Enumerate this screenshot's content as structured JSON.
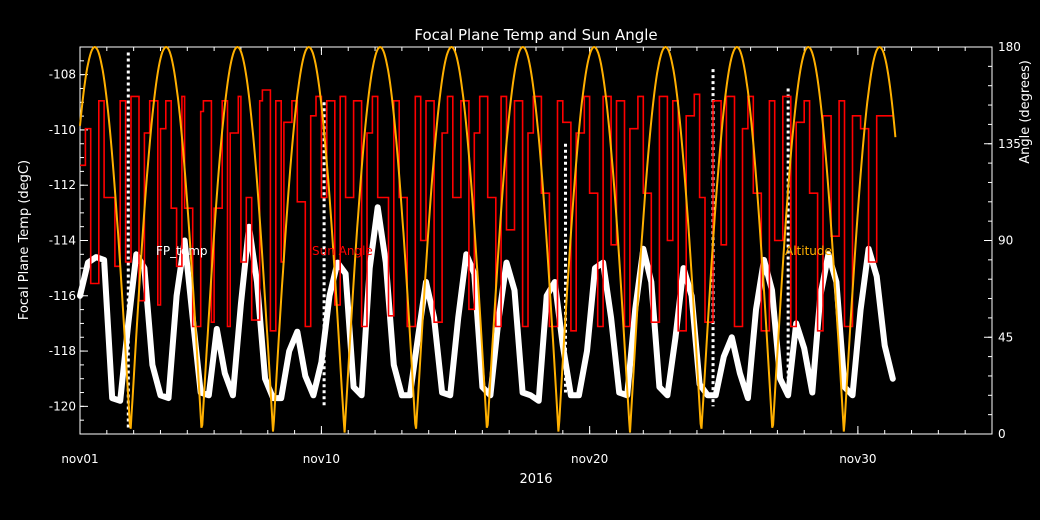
{
  "chart_data": {
    "type": "line",
    "title": "Focal Plane Temp and Sun Angle",
    "xlabel": "2016",
    "ylabel_left": "Focal Plane Temp (degC)",
    "ylabel_right": "Angle (degrees)",
    "xlim_days": [
      1,
      35
    ],
    "ylim_left": [
      -121.0,
      -107.0
    ],
    "ylim_right": [
      0,
      180
    ],
    "x_ticks": [
      {
        "label": "nov01",
        "day": 1
      },
      {
        "label": "nov10",
        "day": 10
      },
      {
        "label": "nov20",
        "day": 20
      },
      {
        "label": "nov30",
        "day": 30
      }
    ],
    "y_ticks_left": [
      {
        "label": "-108",
        "value": -108
      },
      {
        "label": "-110",
        "value": -110
      },
      {
        "label": "-112",
        "value": -112
      },
      {
        "label": "-114",
        "value": -114
      },
      {
        "label": "-116",
        "value": -116
      },
      {
        "label": "-118",
        "value": -118
      },
      {
        "label": "-120",
        "value": -120
      }
    ],
    "y_ticks_right": [
      {
        "label": "180",
        "value": 180
      },
      {
        "label": "135",
        "value": 135
      },
      {
        "label": "90",
        "value": 90
      },
      {
        "label": "45",
        "value": 45
      },
      {
        "label": "0",
        "value": 0
      }
    ],
    "legend": [
      {
        "label": "FP_temp",
        "color": "#ffffff"
      },
      {
        "label": "Sun Angle",
        "color": "#ff0000"
      },
      {
        "label": "Altitude",
        "color": "#ffb000"
      }
    ],
    "series": [
      {
        "name": "FP_temp",
        "axis": "left",
        "color": "#ffffff",
        "style": "markers",
        "x": [
          1.0,
          1.3,
          1.6,
          1.9,
          2.2,
          2.5,
          2.8,
          3.1,
          3.4,
          3.7,
          4.0,
          4.3,
          4.6,
          4.9,
          5.2,
          5.5,
          5.8,
          6.1,
          6.4,
          6.7,
          7.0,
          7.3,
          7.6,
          7.9,
          8.2,
          8.5,
          8.8,
          9.1,
          9.4,
          9.7,
          10.0,
          10.3,
          10.6,
          10.9,
          11.2,
          11.5,
          11.8,
          12.1,
          12.4,
          12.7,
          13.0,
          13.3,
          13.6,
          13.9,
          14.2,
          14.5,
          14.8,
          15.1,
          15.4,
          15.7,
          16.0,
          16.3,
          16.6,
          16.9,
          17.2,
          17.5,
          17.8,
          18.1,
          18.4,
          18.7,
          19.0,
          19.3,
          19.6,
          19.9,
          20.2,
          20.5,
          20.8,
          21.1,
          21.4,
          21.7,
          22.0,
          22.3,
          22.6,
          22.9,
          23.2,
          23.5,
          23.8,
          24.1,
          24.4,
          24.7,
          25.0,
          25.3,
          25.6,
          25.9,
          26.2,
          26.5,
          26.8,
          27.1,
          27.4,
          27.7,
          28.0,
          28.3,
          28.6,
          28.9,
          29.2,
          29.5,
          29.8,
          30.1,
          30.4,
          30.7,
          31.0,
          31.3
        ],
        "y": [
          -116.0,
          -114.8,
          -114.6,
          -114.7,
          -119.7,
          -119.8,
          -117.0,
          -114.5,
          -115.0,
          -118.5,
          -119.6,
          -119.7,
          -116.0,
          -114.0,
          -116.8,
          -119.5,
          -119.6,
          -117.2,
          -118.8,
          -119.6,
          -116.3,
          -113.5,
          -115.5,
          -119.0,
          -119.7,
          -119.7,
          -118.0,
          -117.3,
          -118.9,
          -119.6,
          -118.4,
          -116.0,
          -114.8,
          -115.2,
          -119.3,
          -119.6,
          -115.0,
          -112.8,
          -114.8,
          -118.5,
          -119.6,
          -119.6,
          -117.5,
          -115.5,
          -116.8,
          -119.5,
          -119.6,
          -116.8,
          -114.5,
          -115.2,
          -119.3,
          -119.6,
          -116.9,
          -114.8,
          -115.8,
          -119.5,
          -119.6,
          -119.8,
          -116.0,
          -115.5,
          -117.8,
          -119.6,
          -119.6,
          -118.0,
          -115.0,
          -114.8,
          -116.8,
          -119.5,
          -119.6,
          -116.5,
          -114.3,
          -115.5,
          -119.3,
          -119.6,
          -117.5,
          -115.0,
          -116.0,
          -119.2,
          -119.6,
          -119.6,
          -118.2,
          -117.5,
          -118.8,
          -119.7,
          -116.5,
          -114.7,
          -115.8,
          -119.0,
          -119.6,
          -117.0,
          -117.9,
          -119.5,
          -116.0,
          -114.5,
          -115.5,
          -119.3,
          -119.6,
          -116.5,
          -114.3,
          -115.3,
          -117.8,
          -119.0
        ]
      },
      {
        "name": "Sun Angle",
        "axis": "right",
        "color": "#ff0000",
        "style": "step",
        "x": [
          1.0,
          1.2,
          1.4,
          1.7,
          1.9,
          2.3,
          2.5,
          2.7,
          2.9,
          3.2,
          3.4,
          3.6,
          3.9,
          4.0,
          4.2,
          4.4,
          4.6,
          4.8,
          4.9,
          5.2,
          5.5,
          5.6,
          5.9,
          6.0,
          6.3,
          6.5,
          6.6,
          6.9,
          7.0,
          7.2,
          7.4,
          7.7,
          7.8,
          8.1,
          8.3,
          8.5,
          8.6,
          8.9,
          9.1,
          9.4,
          9.6,
          9.8,
          10.0,
          10.2,
          10.5,
          10.7,
          10.9,
          11.2,
          11.5,
          11.7,
          11.9,
          12.1,
          12.5,
          12.7,
          12.9,
          13.2,
          13.5,
          13.7,
          13.9,
          14.2,
          14.5,
          14.7,
          14.9,
          15.2,
          15.5,
          15.7,
          15.9,
          16.2,
          16.5,
          16.7,
          16.9,
          17.2,
          17.5,
          17.7,
          17.9,
          18.2,
          18.5,
          18.8,
          19.0,
          19.3,
          19.5,
          19.8,
          20.0,
          20.3,
          20.5,
          20.8,
          21.0,
          21.3,
          21.5,
          21.8,
          22.0,
          22.3,
          22.6,
          22.9,
          23.1,
          23.3,
          23.6,
          23.9,
          24.1,
          24.3,
          24.6,
          24.9,
          25.1,
          25.4,
          25.7,
          25.9,
          26.1,
          26.4,
          26.7,
          26.9,
          27.2,
          27.5,
          27.7,
          28.0,
          28.2,
          28.5,
          28.7,
          29.0,
          29.3,
          29.5,
          29.8,
          30.1,
          30.4,
          30.7,
          31.0,
          31.3
        ],
        "y": [
          125,
          142,
          70,
          155,
          110,
          78,
          155,
          80,
          157,
          62,
          140,
          155,
          60,
          142,
          155,
          105,
          78,
          157,
          105,
          50,
          150,
          155,
          52,
          105,
          155,
          50,
          140,
          157,
          80,
          110,
          53,
          155,
          160,
          48,
          155,
          80,
          145,
          155,
          108,
          50,
          148,
          157,
          110,
          155,
          60,
          157,
          110,
          155,
          50,
          140,
          157,
          110,
          55,
          155,
          110,
          50,
          157,
          90,
          155,
          52,
          140,
          157,
          110,
          155,
          58,
          140,
          157,
          110,
          50,
          157,
          95,
          155,
          50,
          140,
          157,
          112,
          50,
          155,
          145,
          48,
          140,
          157,
          112,
          50,
          157,
          88,
          155,
          50,
          142,
          157,
          112,
          52,
          157,
          90,
          155,
          48,
          148,
          158,
          110,
          52,
          155,
          88,
          157,
          50,
          142,
          157,
          112,
          48,
          155,
          90,
          157,
          50,
          145,
          155,
          112,
          48,
          148,
          92,
          155,
          50,
          148,
          142,
          80,
          148,
          148,
          148
        ]
      },
      {
        "name": "Altitude",
        "axis": "right",
        "color": "#ffb000",
        "style": "line",
        "period_days": 2.66,
        "phase_days": 1.55,
        "min": 0,
        "max": 180
      }
    ]
  }
}
